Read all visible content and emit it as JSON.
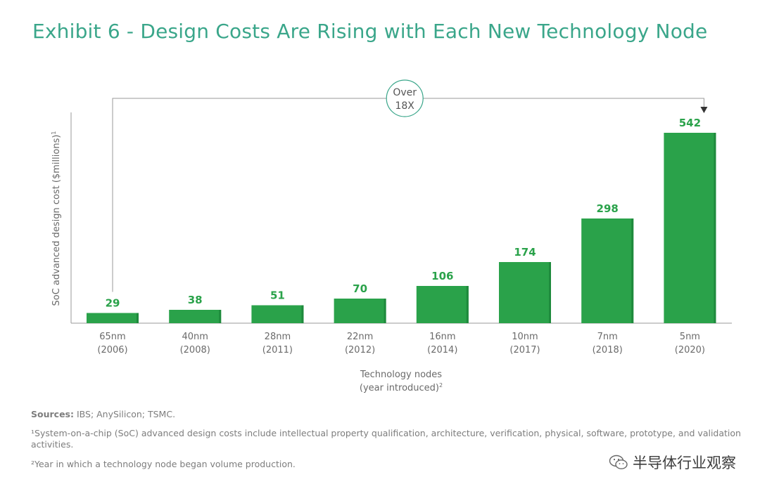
{
  "title": "Exhibit 6 - Design Costs Are Rising with Each New Technology Node",
  "chart_data": {
    "type": "bar",
    "categories": [
      "65nm",
      "40nm",
      "28nm",
      "22nm",
      "16nm",
      "10nm",
      "7nm",
      "5nm"
    ],
    "years": [
      "(2006)",
      "(2008)",
      "(2011)",
      "(2012)",
      "(2014)",
      "(2017)",
      "(2018)",
      "(2020)"
    ],
    "values": [
      29,
      38,
      51,
      70,
      106,
      174,
      298,
      542
    ],
    "ylabel": "SoC advanced design cost ($millions)",
    "ylabel_sup": "1",
    "xlabel_line1": "Technology nodes",
    "xlabel_line2": "(year introduced)",
    "xlabel_sup": "2",
    "ylim": [
      0,
      542
    ],
    "grid": false,
    "bar_color": "#2aa24a",
    "annotation": {
      "line1": "Over",
      "line2": "18X",
      "from": "65nm",
      "to": "5nm"
    }
  },
  "notes": {
    "sources_label": "Sources:",
    "sources_text": "IBS; AnySilicon; TSMC.",
    "note1_marker": "¹",
    "note1": "System-on-a-chip (SoC) advanced design costs include intellectual property qualification, architecture, verification, physical, software, prototype, and validation activities.",
    "note2_marker": "²",
    "note2": "Year in which a technology node began volume production."
  },
  "watermark": {
    "text": "半导体行业观察",
    "icon": "wechat-icon"
  },
  "colors": {
    "title": "#3aa68a",
    "bar": "#2aa24a",
    "text": "#6a6a6a"
  }
}
